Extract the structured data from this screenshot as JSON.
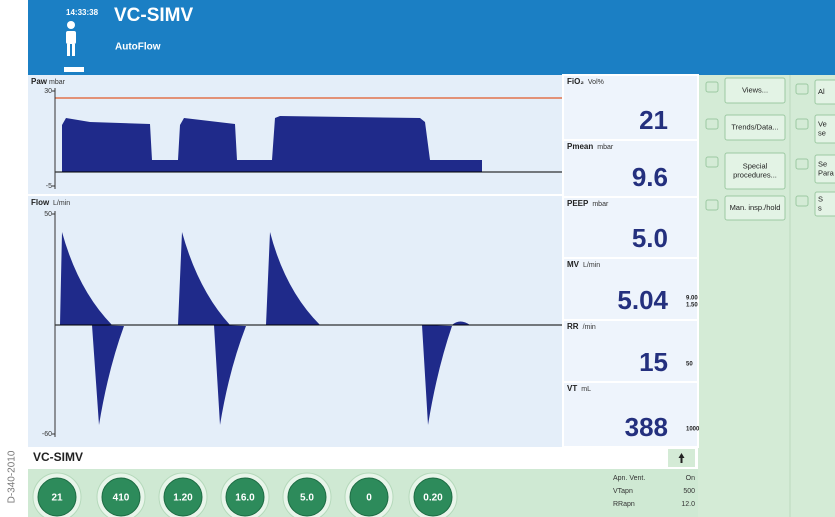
{
  "header": {
    "time": "14:33:38",
    "mode": "VC-SIMV",
    "submode": "AutoFlow"
  },
  "side_label": "D-340-2010",
  "waveforms": [
    {
      "label": "Paw",
      "unit": "mbar",
      "ylim": [
        -5,
        30
      ],
      "yticks": [
        -5,
        30
      ]
    },
    {
      "label": "Flow",
      "unit": "L/min",
      "ylim": [
        -60,
        50
      ],
      "yticks": [
        -60,
        50
      ]
    }
  ],
  "measurements": [
    {
      "label": "FiO₂",
      "unit": "Vol%",
      "value": "21"
    },
    {
      "label": "Pmean",
      "unit": "mbar",
      "value": "9.6"
    },
    {
      "label": "PEEP",
      "unit": "mbar",
      "value": "5.0"
    },
    {
      "label": "MV",
      "unit": "L/min",
      "value": "5.04",
      "limits": [
        "9.00",
        "1.50"
      ]
    },
    {
      "label": "RR",
      "unit": "/min",
      "value": "15",
      "limits": [
        "50"
      ]
    },
    {
      "label": "VT",
      "unit": "mL",
      "value": "388",
      "limits": [
        "1000"
      ]
    }
  ],
  "buttons": [
    "Views...",
    "Trends/Data...",
    "Special procedures...",
    "Man. insp./hold"
  ],
  "buttons_right": [
    "Al",
    "Ve se",
    "Se Para",
    "S s"
  ],
  "mode_bar": {
    "title": "VC-SIMV"
  },
  "settings": [
    "21",
    "410",
    "1.20",
    "16.0",
    "5.0",
    "0",
    "0.20"
  ],
  "apnea": [
    {
      "label": "Apn. Vent.",
      "value": "On"
    },
    {
      "label": "VTapn",
      "value": "500"
    },
    {
      "label": "RRapn",
      "value": "12.0"
    }
  ]
}
